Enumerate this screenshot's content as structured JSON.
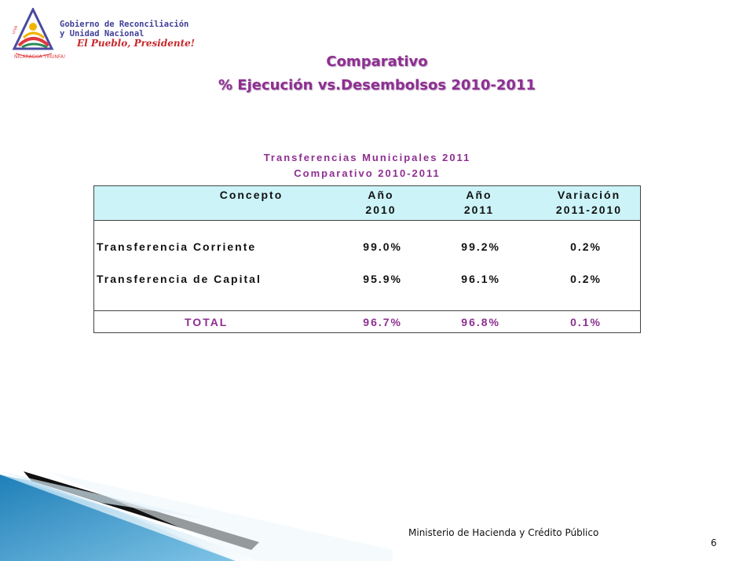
{
  "logo": {
    "line1": "Gobierno de Reconciliación",
    "line2": "y Unidad Nacional",
    "slogan": "El Pueblo, Presidente!",
    "seal_text_1": "NICARAGUA TRIUNFA!",
    "seal_text_2": "VIVA"
  },
  "slide": {
    "title_line1": "Comparativo",
    "title_line2": "% Ejecución vs.Desembolsos 2010-2011"
  },
  "table": {
    "caption_line1": "Transferencias Municipales  2011",
    "caption_line2": "Comparativo 2010-2011",
    "headers": [
      {
        "line1": "Concepto",
        "line2": ""
      },
      {
        "line1": "Año",
        "line2": "2010"
      },
      {
        "line1": "Año",
        "line2": "2011"
      },
      {
        "line1": "Variación",
        "line2": "2011-2010"
      }
    ],
    "rows": [
      {
        "concepto": "Transferencia Corriente",
        "y2010": "99.0%",
        "y2011": "99.2%",
        "variacion": "0.2%"
      },
      {
        "concepto": "Transferencia de Capital",
        "y2010": "95.9%",
        "y2011": "96.1%",
        "variacion": "0.2%"
      }
    ],
    "total": {
      "concepto": "TOTAL",
      "y2010": "96.7%",
      "y2011": "96.8%",
      "variacion": "0.1%"
    }
  },
  "footer": {
    "ministry": "Ministerio de Hacienda y Crédito Público",
    "page_number": "6"
  },
  "colors": {
    "accent_purple": "#8e2f91",
    "header_bg": "#ccf4f8"
  }
}
